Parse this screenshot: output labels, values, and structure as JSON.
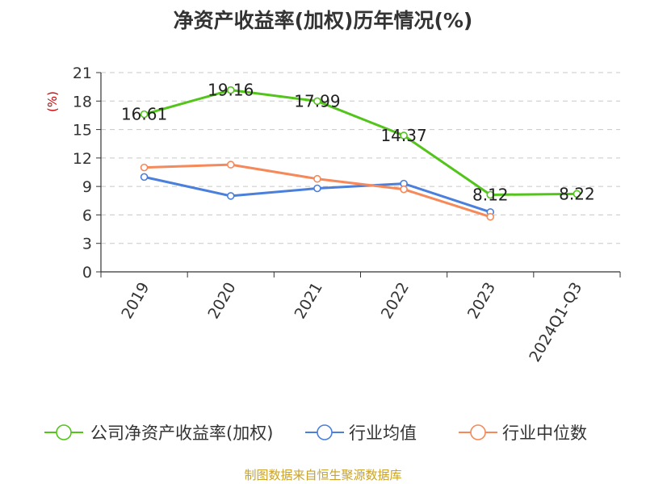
{
  "chart_data": {
    "type": "line",
    "title": "净资产收益率(加权)历年情况(%)",
    "ylabel": "(%)",
    "xlabel": "",
    "categories": [
      "2019",
      "2020",
      "2021",
      "2022",
      "2023",
      "2024Q1-Q3"
    ],
    "ylim": [
      0,
      21
    ],
    "yticks": [
      0,
      3,
      6,
      9,
      12,
      15,
      18,
      21
    ],
    "grid": true,
    "legend_position": "bottom",
    "series": [
      {
        "name": "公司净资产收益率(加权)",
        "color": "#52c41a",
        "values": [
          16.61,
          19.16,
          17.99,
          14.37,
          8.12,
          8.22
        ],
        "labels": [
          "16.61",
          "19.16",
          "17.99",
          "14.37",
          "8.12",
          "8.22"
        ]
      },
      {
        "name": "行业均值",
        "color": "#4a7fdb",
        "values": [
          10.0,
          8.0,
          8.8,
          9.3,
          6.3,
          null
        ]
      },
      {
        "name": "行业中位数",
        "color": "#f5895a",
        "values": [
          11.0,
          11.3,
          9.8,
          8.7,
          5.8,
          null
        ]
      }
    ]
  },
  "source": "制图数据来自恒生聚源数据库"
}
